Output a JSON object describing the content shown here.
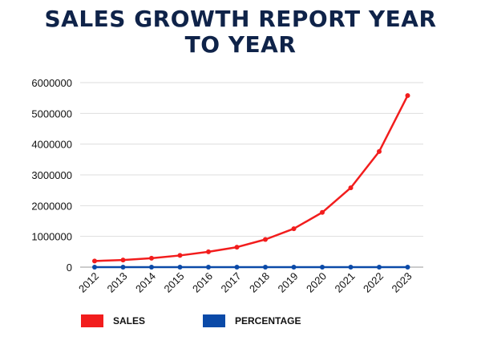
{
  "chart_data": {
    "type": "line",
    "title": "SALES GROWTH REPORT YEAR TO YEAR",
    "categories": [
      "2012",
      "2013",
      "2014",
      "2015",
      "2016",
      "2017",
      "2018",
      "2019",
      "2020",
      "2021",
      "2022",
      "2023"
    ],
    "series": [
      {
        "name": "SALES",
        "color": "#f21d1d",
        "values": [
          200000,
          230000,
          290000,
          380000,
          500000,
          650000,
          900000,
          1250000,
          1780000,
          2580000,
          3760000,
          5580000
        ]
      },
      {
        "name": "PERCENTAGE",
        "color": "#0b4aa8",
        "values": [
          0,
          0,
          0,
          0,
          0,
          0,
          0,
          0,
          0,
          0,
          0,
          0
        ]
      }
    ],
    "yticks": [
      "0",
      "1000000",
      "2000000",
      "3000000",
      "4000000",
      "5000000",
      "6000000"
    ],
    "ylim": [
      0,
      6000000
    ],
    "grid": true,
    "legend_position": "bottom-left"
  }
}
